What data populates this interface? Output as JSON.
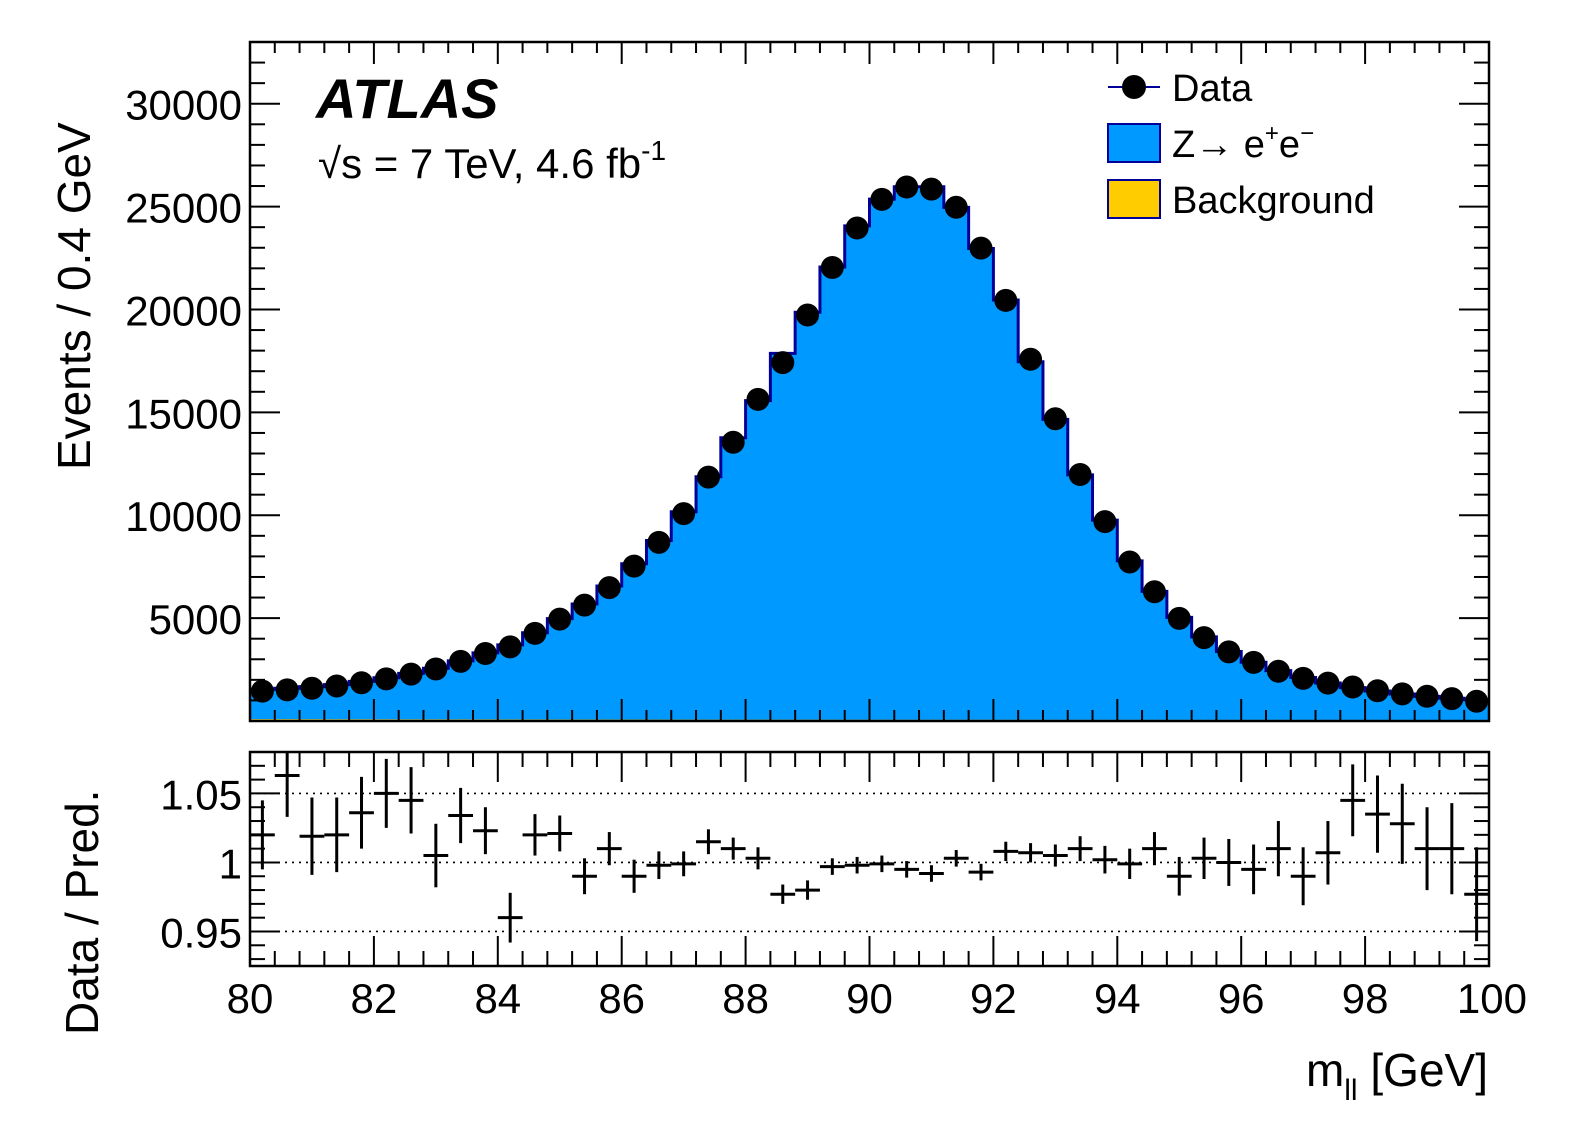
{
  "chart_data": [
    {
      "type": "histogram",
      "title": "",
      "experiment_label": "ATLAS",
      "energy_sqrt": "√",
      "energy_text": "s = 7 TeV, 4.6 fb",
      "energy_sup": "-1",
      "ylabel": "Events /  0.4 GeV",
      "xlim": [
        80,
        100
      ],
      "ylim": [
        0,
        33000
      ],
      "yticks": [
        5000,
        10000,
        15000,
        20000,
        25000,
        30000
      ],
      "ytick_labels": [
        "5000",
        "10000",
        "15000",
        "20000",
        "25000",
        "30000"
      ],
      "bin_width": 0.4,
      "legend": {
        "position": "top-right",
        "entries": [
          {
            "key": "data",
            "label": "Data",
            "color": "#000000"
          },
          {
            "key": "signal",
            "label": "Z→ e",
            "sup1": "+",
            "mid": "e",
            "sup2": "−",
            "color": "#0099ff"
          },
          {
            "key": "background",
            "label": "Background",
            "color": "#ffcc00"
          }
        ]
      },
      "series": [
        {
          "name": "Z→ e+e−",
          "color": "#0099ff",
          "edge_color": "#000099",
          "values": [
            1450,
            1500,
            1580,
            1680,
            1840,
            2020,
            2230,
            2480,
            2840,
            3230,
            3620,
            4210,
            4900,
            5610,
            6490,
            7570,
            8700,
            10100,
            11800,
            13700,
            15500,
            17800,
            19800,
            22000,
            24000,
            25300,
            25900,
            25900,
            24900,
            22900,
            20400,
            17400,
            14600,
            11900,
            9700,
            7720,
            6240,
            4980,
            4030,
            3320,
            2800,
            2390,
            2060,
            1790,
            1570,
            1400,
            1260,
            1140,
            1050,
            980
          ]
        },
        {
          "name": "Background",
          "color": "#ffcc00",
          "values": [
            90,
            90,
            88,
            86,
            85,
            84,
            82,
            81,
            80,
            79,
            78,
            77,
            76,
            75,
            74,
            73,
            72,
            71,
            70,
            69,
            68,
            68,
            67,
            66,
            65,
            65,
            64,
            64,
            63,
            63,
            62,
            62,
            61,
            61,
            60,
            60,
            59,
            59,
            58,
            58,
            57,
            57,
            56,
            56,
            55,
            55,
            54,
            54,
            53,
            53
          ]
        },
        {
          "name": "Data",
          "color": "#000000",
          "values": [
            1450,
            1510,
            1590,
            1700,
            1860,
            2050,
            2280,
            2530,
            2900,
            3280,
            3600,
            4260,
            4950,
            5630,
            6480,
            7530,
            8680,
            10080,
            11850,
            13550,
            15630,
            17420,
            19730,
            22040,
            23960,
            25350,
            25950,
            25850,
            24970,
            22980,
            20440,
            17580,
            14690,
            11980,
            9690,
            7730,
            6280,
            4990,
            4050,
            3360,
            2850,
            2420,
            2070,
            1840,
            1650,
            1470,
            1320,
            1200,
            1090,
            960
          ]
        }
      ]
    },
    {
      "type": "ratio",
      "ylabel": "Data / Pred.",
      "xlabel_main": "m",
      "xlabel_sub": "ll",
      "xlabel_unit": " [GeV]",
      "xlim": [
        80,
        100
      ],
      "ylim": [
        0.925,
        1.08
      ],
      "yticks": [
        0.95,
        1,
        1.05
      ],
      "ytick_labels": [
        "0.95",
        "1",
        "1.05"
      ],
      "xticks": [
        80,
        82,
        84,
        86,
        88,
        90,
        92,
        94,
        96,
        98,
        100
      ],
      "xtick_labels": [
        "80",
        "82",
        "84",
        "86",
        "88",
        "90",
        "92",
        "94",
        "96",
        "98",
        "100"
      ],
      "reference_lines": [
        0.95,
        1,
        1.05
      ],
      "ratio": [
        1.02,
        1.063,
        1.019,
        1.02,
        1.036,
        1.05,
        1.045,
        1.005,
        1.034,
        1.023,
        0.96,
        1.02,
        1.021,
        0.99,
        1.01,
        0.99,
        0.998,
        0.999,
        1.015,
        1.01,
        1.003,
        0.977,
        0.98,
        0.997,
        0.998,
        0.999,
        0.995,
        0.992,
        1.003,
        0.993,
        1.008,
        1.007,
        1.005,
        1.01,
        1.002,
        0.999,
        1.01,
        0.99,
        1.003,
        1.0,
        0.995,
        1.01,
        0.99,
        1.007,
        1.045,
        1.035,
        1.028,
        1.01,
        1.01,
        0.977
      ],
      "errors": [
        0.025,
        0.03,
        0.028,
        0.027,
        0.026,
        0.025,
        0.024,
        0.023,
        0.02,
        0.017,
        0.018,
        0.015,
        0.013,
        0.013,
        0.012,
        0.012,
        0.01,
        0.009,
        0.009,
        0.008,
        0.008,
        0.007,
        0.007,
        0.006,
        0.006,
        0.006,
        0.006,
        0.006,
        0.006,
        0.006,
        0.007,
        0.007,
        0.008,
        0.009,
        0.01,
        0.011,
        0.012,
        0.014,
        0.015,
        0.017,
        0.018,
        0.02,
        0.021,
        0.023,
        0.026,
        0.028,
        0.029,
        0.03,
        0.033,
        0.034
      ]
    }
  ]
}
